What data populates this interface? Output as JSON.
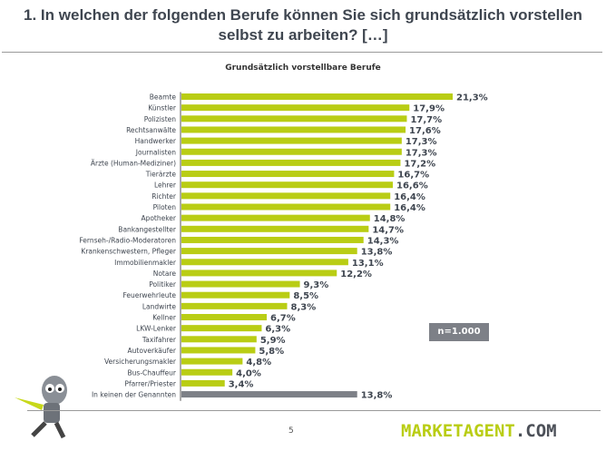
{
  "header": {
    "title_line1": "1. In welchen der folgenden Berufe können Sie sich grundsätzlich vorstellen",
    "title_line2": "selbst zu arbeiten? […]"
  },
  "sample_note": "n=1.000",
  "footer": {
    "page_number": "5",
    "logo_main": "MARKETAGENT",
    "logo_suffix": ".COM"
  },
  "colors": {
    "bar": "#b9cd14",
    "bar_last": "#7d8087",
    "text": "#3f4650"
  },
  "chart_data": {
    "type": "bar",
    "orientation": "horizontal",
    "title": "Grundsätzlich vorstellbare Berufe",
    "xlabel": "",
    "ylabel": "",
    "xlim": [
      0,
      21.3
    ],
    "grid": false,
    "categories": [
      "Beamte",
      "Künstler",
      "Polizisten",
      "Rechtsanwälte",
      "Handwerker",
      "Journalisten",
      "Ärzte (Human-Mediziner)",
      "Tierärzte",
      "Lehrer",
      "Richter",
      "Piloten",
      "Apotheker",
      "Bankangestellter",
      "Fernseh-/Radio-Moderatoren",
      "Krankenschwestern, Pfleger",
      "Immobilienmakler",
      "Notare",
      "Politiker",
      "Feuerwehrleute",
      "Landwirte",
      "Kellner",
      "LKW-Lenker",
      "Taxifahrer",
      "Autoverkäufer",
      "Versicherungsmakler",
      "Bus-Chauffeur",
      "Pfarrer/Priester",
      "In keinen der Genannten"
    ],
    "values": [
      21.3,
      17.9,
      17.7,
      17.6,
      17.3,
      17.3,
      17.2,
      16.7,
      16.6,
      16.4,
      16.4,
      14.8,
      14.7,
      14.3,
      13.8,
      13.1,
      12.2,
      9.3,
      8.5,
      8.3,
      6.7,
      6.3,
      5.9,
      5.8,
      4.8,
      4.0,
      3.4,
      13.8
    ],
    "data_labels": [
      "21,3%",
      "17,9%",
      "17,7%",
      "17,6%",
      "17,3%",
      "17,3%",
      "17,2%",
      "16,7%",
      "16,6%",
      "16,4%",
      "16,4%",
      "14,8%",
      "14,7%",
      "14,3%",
      "13,8%",
      "13,1%",
      "12,2%",
      "9,3%",
      "8,5%",
      "8,3%",
      "6,7%",
      "6,3%",
      "5,9%",
      "5,8%",
      "4,8%",
      "4,0%",
      "3,4%",
      "13,8%"
    ]
  }
}
